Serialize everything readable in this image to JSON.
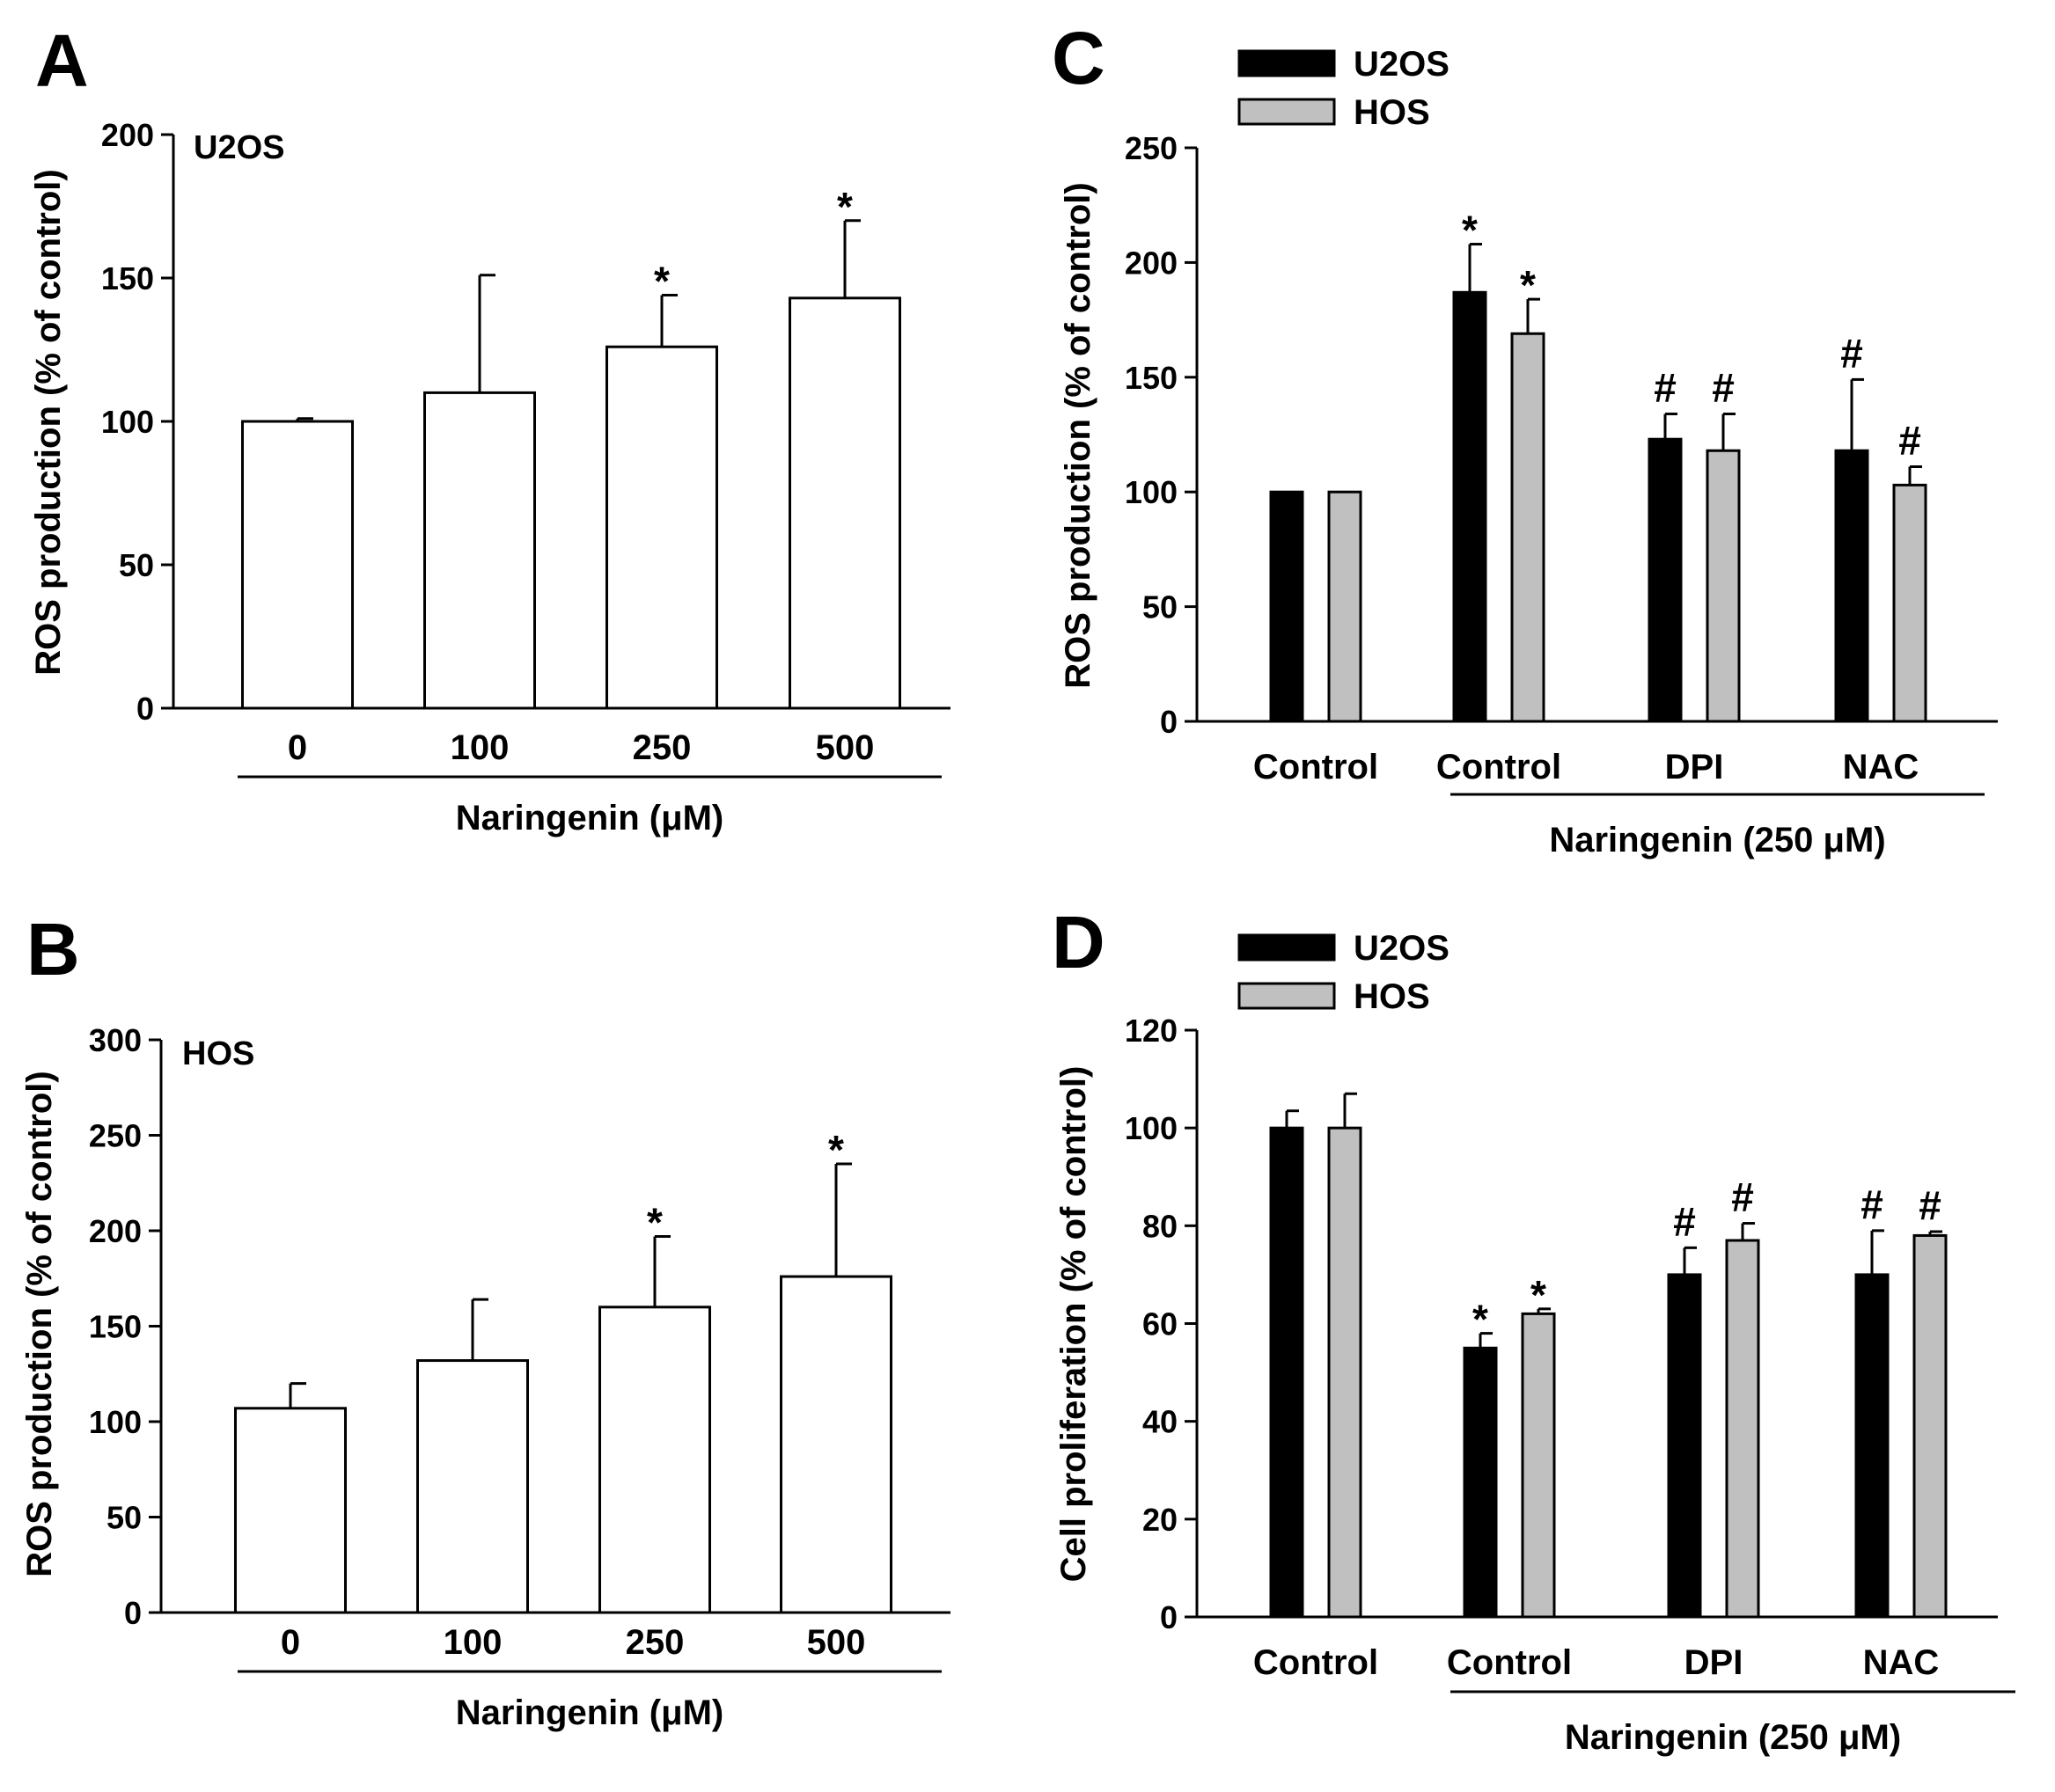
{
  "chart_data": [
    {
      "panel": "A",
      "type": "bar",
      "inset_label": "U2OS",
      "categories": [
        "0",
        "100",
        "250",
        "500"
      ],
      "series": [
        {
          "name": "U2OS",
          "values": [
            100,
            110,
            126,
            143
          ],
          "errors": [
            1,
            41,
            18,
            27
          ]
        }
      ],
      "significance": [
        "",
        "",
        "*",
        "*"
      ],
      "ylabel": "ROS production (% of control)",
      "xlabel": "Naringenin (μM)",
      "ylim": [
        0,
        200
      ],
      "yticks": [
        0,
        50,
        100,
        150,
        200
      ],
      "colors": [
        "#ffffff"
      ]
    },
    {
      "panel": "B",
      "type": "bar",
      "inset_label": "HOS",
      "categories": [
        "0",
        "100",
        "250",
        "500"
      ],
      "series": [
        {
          "name": "HOS",
          "values": [
            107,
            132,
            160,
            176
          ],
          "errors": [
            13,
            32,
            37,
            59
          ]
        }
      ],
      "significance": [
        "",
        "",
        "*",
        "*"
      ],
      "ylabel": "ROS production (% of control)",
      "xlabel": "Naringenin (μM)",
      "ylim": [
        0,
        300
      ],
      "yticks": [
        0,
        50,
        100,
        150,
        200,
        250,
        300
      ],
      "colors": [
        "#ffffff"
      ]
    },
    {
      "panel": "C",
      "type": "bar",
      "categories": [
        "Control",
        "Control",
        "DPI",
        "NAC"
      ],
      "series": [
        {
          "name": "U2OS",
          "values": [
            100,
            187,
            123,
            118
          ],
          "errors": [
            0,
            21,
            11,
            31
          ],
          "significance": [
            "",
            "*",
            "#",
            "#"
          ]
        },
        {
          "name": "HOS",
          "values": [
            100,
            169,
            118,
            103
          ],
          "errors": [
            0,
            15,
            16,
            8
          ],
          "significance": [
            "",
            "*",
            "#",
            "#"
          ]
        }
      ],
      "ylabel": "ROS production (% of control)",
      "xlabel": "Naringenin (250 μM)",
      "ylim": [
        0,
        250
      ],
      "yticks": [
        0,
        50,
        100,
        150,
        200,
        250
      ],
      "legend": [
        "U2OS",
        "HOS"
      ],
      "colors": [
        "#000000",
        "#c0c0c0"
      ]
    },
    {
      "panel": "D",
      "type": "bar",
      "categories": [
        "Control",
        "Control",
        "DPI",
        "NAC"
      ],
      "series": [
        {
          "name": "U2OS",
          "values": [
            100,
            55,
            70,
            70
          ],
          "errors": [
            3.5,
            3,
            5.5,
            9
          ],
          "significance": [
            "",
            "*",
            "#",
            "#"
          ]
        },
        {
          "name": "HOS",
          "values": [
            100,
            62,
            77,
            78
          ],
          "errors": [
            7,
            1,
            3.5,
            0.8
          ],
          "significance": [
            "",
            "*",
            "#",
            "#"
          ]
        }
      ],
      "ylabel": "Cell proliferation (% of control)",
      "xlabel": "Naringenin (250 μM)",
      "ylim": [
        0,
        120
      ],
      "yticks": [
        0,
        20,
        40,
        60,
        80,
        100,
        120
      ],
      "legend": [
        "U2OS",
        "HOS"
      ],
      "colors": [
        "#000000",
        "#c0c0c0"
      ]
    }
  ]
}
